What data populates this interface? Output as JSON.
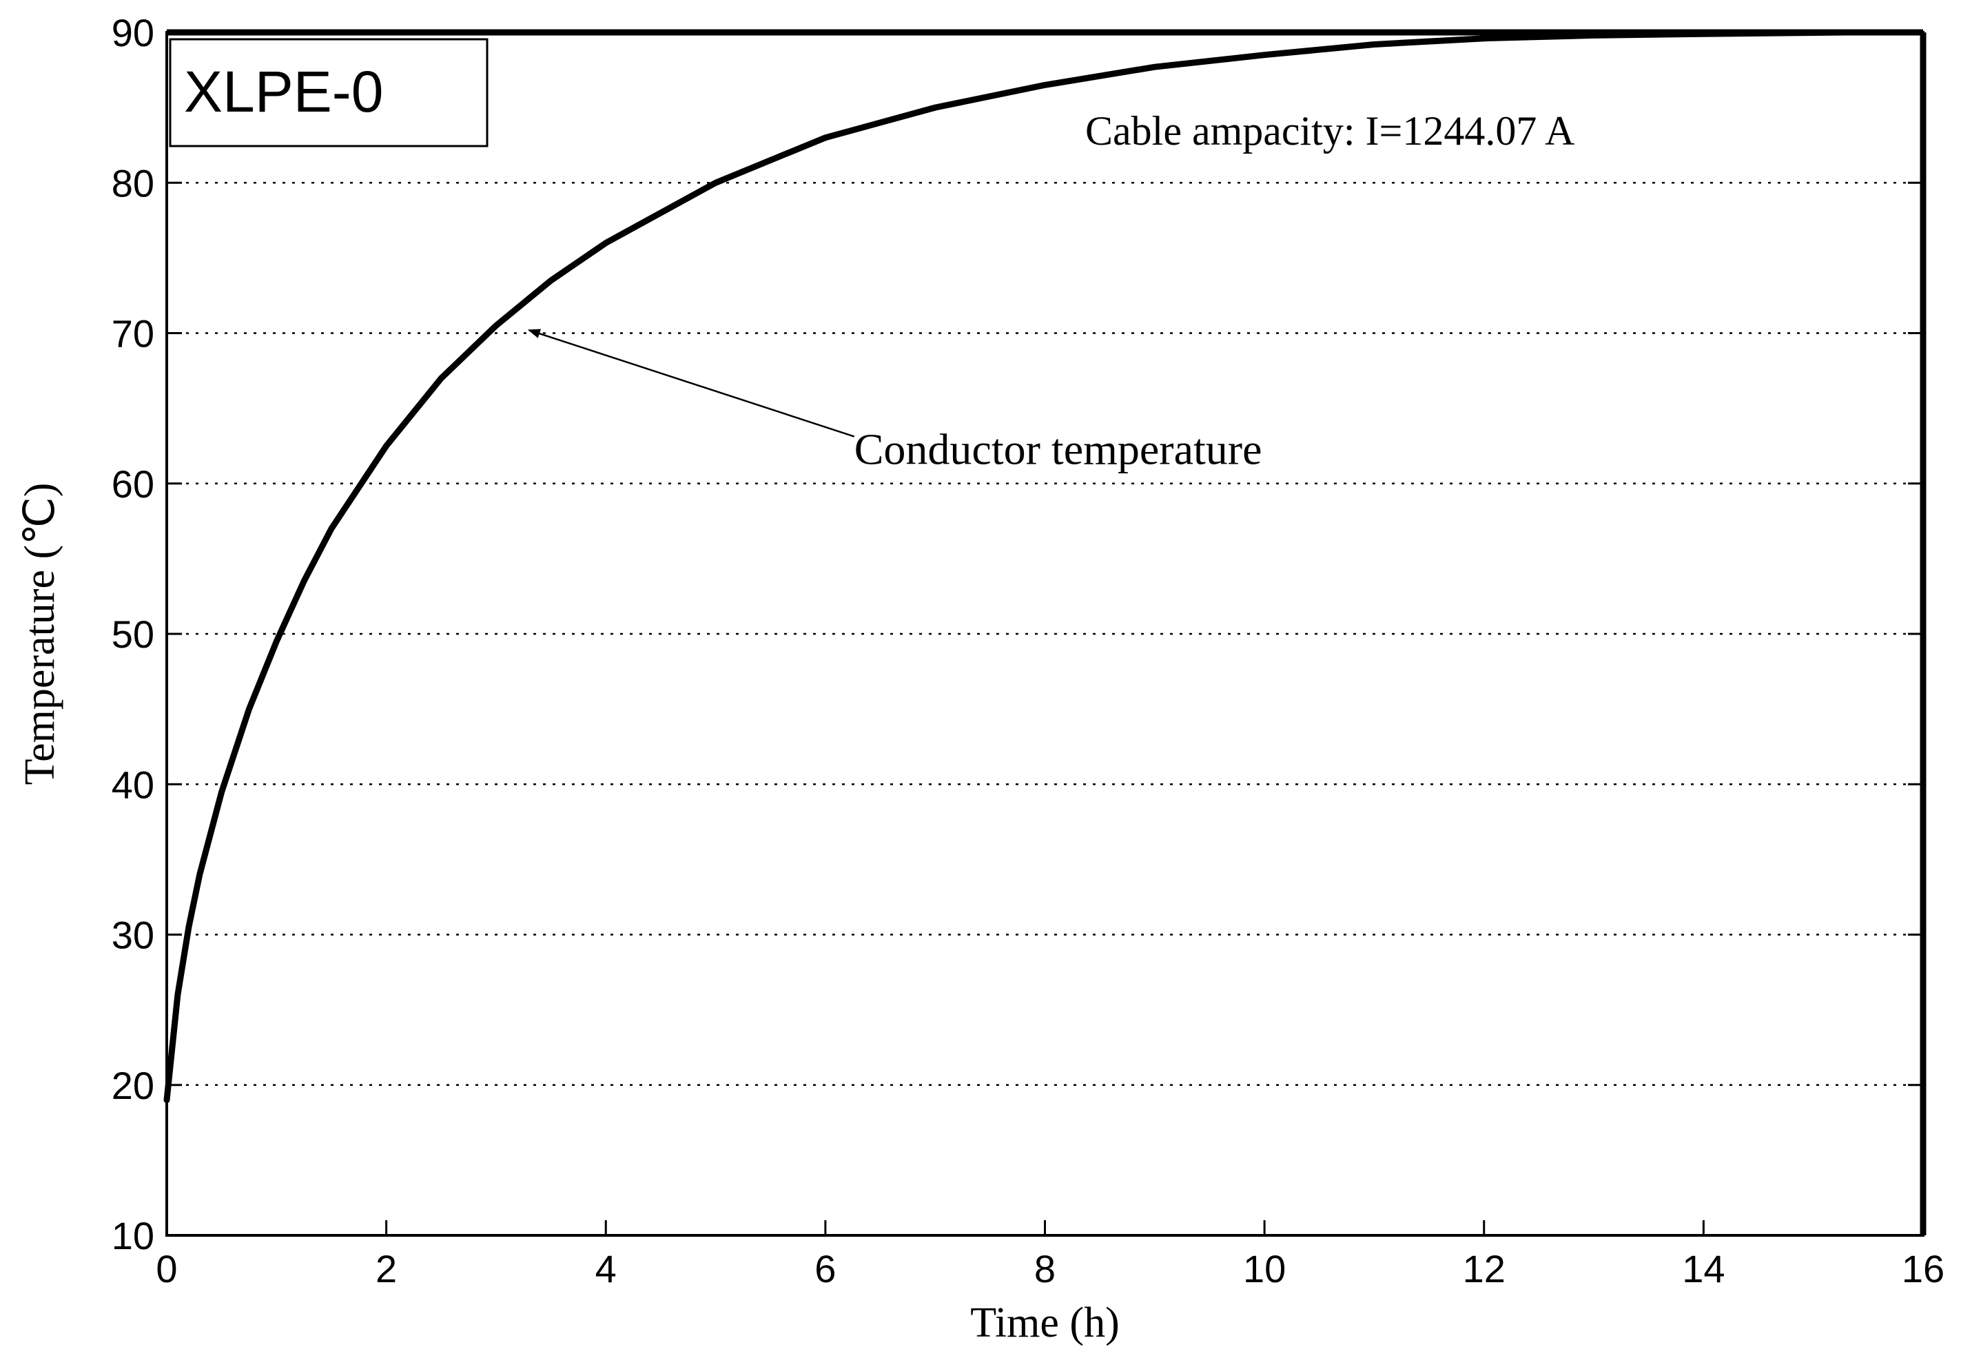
{
  "chart_data": {
    "type": "line",
    "title": "",
    "xlabel": "Time (h)",
    "ylabel": "Temperature (℃)",
    "xlim": [
      0,
      16
    ],
    "ylim": [
      10,
      90
    ],
    "xticks": [
      0,
      2,
      4,
      6,
      8,
      10,
      12,
      14,
      16
    ],
    "yticks": [
      10,
      20,
      30,
      40,
      50,
      60,
      70,
      80,
      90
    ],
    "grid": "horizontal dotted",
    "series": [
      {
        "name": "Conductor temperature",
        "color": "#000000",
        "x": [
          0,
          0.1,
          0.2,
          0.3,
          0.5,
          0.75,
          1,
          1.25,
          1.5,
          2,
          2.5,
          3,
          3.5,
          4,
          4.5,
          5,
          5.5,
          6,
          7,
          8,
          9,
          10,
          11,
          12,
          13,
          14,
          15.3
        ],
        "y": [
          19,
          26,
          30.5,
          34,
          39.5,
          45,
          49.5,
          53.5,
          57,
          62.5,
          67,
          70.5,
          73.5,
          76,
          78,
          80,
          81.5,
          83,
          85,
          86.5,
          87.7,
          88.5,
          89.2,
          89.6,
          89.8,
          89.9,
          90
        ]
      }
    ],
    "annotations": [
      {
        "text": "XLPE-0",
        "kind": "boxed-label"
      },
      {
        "text": "Cable ampacity: I=1244.07 A",
        "kind": "note"
      },
      {
        "text": "Conductor temperature",
        "kind": "arrow-label",
        "points_to": {
          "x": 3.3,
          "y": 70.2
        },
        "text_at": {
          "x": 6.2,
          "y": 62.3
        }
      }
    ]
  }
}
